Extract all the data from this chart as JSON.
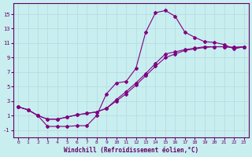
{
  "title": "",
  "xlabel": "Windchill (Refroidissement éolien,°C)",
  "ylabel": "",
  "bg_color": "#c8eef0",
  "grid_color": "#b8dde0",
  "line_color": "#800080",
  "xlim": [
    -0.5,
    23.5
  ],
  "ylim": [
    -2.0,
    16.5
  ],
  "xticks": [
    0,
    1,
    2,
    3,
    4,
    5,
    6,
    7,
    8,
    9,
    10,
    11,
    12,
    13,
    14,
    15,
    16,
    17,
    18,
    19,
    20,
    21,
    22,
    23
  ],
  "yticks": [
    -1,
    1,
    3,
    5,
    7,
    9,
    11,
    13,
    15
  ],
  "curve1_x": [
    0,
    1,
    2,
    3,
    4,
    5,
    6,
    7,
    8,
    9,
    10,
    11,
    12,
    13,
    14,
    15,
    16,
    17,
    18,
    19,
    20,
    21,
    22,
    23
  ],
  "curve1_y": [
    2.2,
    1.8,
    1.0,
    -0.5,
    -0.5,
    -0.5,
    -0.4,
    -0.4,
    1.0,
    4.0,
    5.5,
    5.7,
    7.5,
    12.5,
    15.2,
    15.5,
    14.7,
    12.5,
    11.8,
    11.2,
    11.1,
    10.8,
    10.2,
    10.5
  ],
  "curve2_x": [
    0,
    1,
    2,
    3,
    4,
    5,
    6,
    7,
    8,
    9,
    10,
    11,
    12,
    13,
    14,
    15,
    16,
    17,
    18,
    19,
    20,
    21,
    22,
    23
  ],
  "curve2_y": [
    2.2,
    1.8,
    1.0,
    0.5,
    0.5,
    0.8,
    1.1,
    1.3,
    1.5,
    2.0,
    3.0,
    4.0,
    5.2,
    6.5,
    7.8,
    9.0,
    9.5,
    10.0,
    10.2,
    10.4,
    10.5,
    10.5,
    10.4,
    10.5
  ],
  "curve3_x": [
    0,
    1,
    2,
    3,
    4,
    5,
    6,
    7,
    8,
    9,
    10,
    11,
    12,
    13,
    14,
    15,
    16,
    17,
    18,
    19,
    20,
    21,
    22,
    23
  ],
  "curve3_y": [
    2.2,
    1.8,
    1.0,
    0.5,
    0.5,
    0.8,
    1.1,
    1.3,
    1.5,
    2.0,
    3.2,
    4.3,
    5.5,
    6.8,
    8.2,
    9.5,
    9.8,
    10.1,
    10.3,
    10.5,
    10.5,
    10.5,
    10.4,
    10.5
  ]
}
